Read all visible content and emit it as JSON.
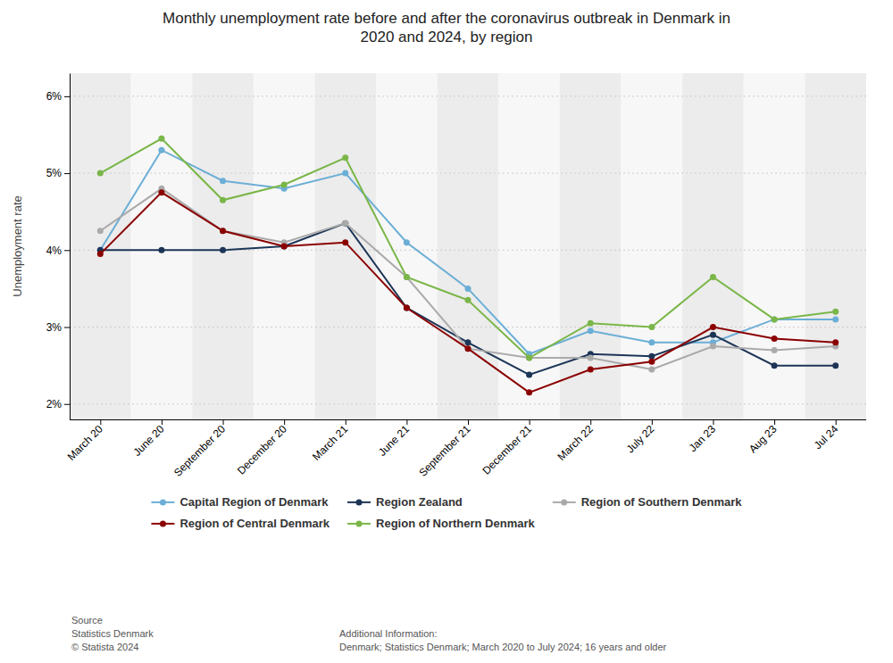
{
  "chart_data": {
    "type": "line",
    "title": "Monthly unemployment rate before and after the coronavirus outbreak in Denmark in\n2020 and 2024, by region",
    "y_label": "Unemployment rate",
    "categories": [
      "March 20",
      "June 20",
      "September 20",
      "December 20",
      "March 21",
      "June 21",
      "September 21",
      "December 21",
      "March 22",
      "July 22",
      "Jan 23",
      "Aug 23",
      "Jul 24"
    ],
    "series": [
      {
        "name": "Capital Region of Denmark",
        "color": "#6BAED6",
        "values": [
          4.0,
          5.3,
          4.9,
          4.8,
          5.0,
          4.1,
          3.5,
          2.65,
          2.95,
          2.8,
          2.8,
          3.1,
          3.1
        ]
      },
      {
        "name": "Region Zealand",
        "color": "#1C3557",
        "values": [
          4.0,
          4.0,
          4.0,
          4.05,
          4.35,
          3.25,
          2.8,
          2.38,
          2.65,
          2.62,
          2.9,
          2.5,
          2.5
        ]
      },
      {
        "name": "Region of Southern Denmark",
        "color": "#AAAAAA",
        "values": [
          4.25,
          4.8,
          4.25,
          4.1,
          4.35,
          3.65,
          2.72,
          2.6,
          2.6,
          2.45,
          2.75,
          2.7,
          2.75
        ]
      },
      {
        "name": "Region of Central Denmark",
        "color": "#8B0000",
        "values": [
          3.95,
          4.75,
          4.25,
          4.05,
          4.1,
          3.25,
          2.72,
          2.15,
          2.45,
          2.55,
          3.0,
          2.85,
          2.8
        ]
      },
      {
        "name": "Region of Northern Denmark",
        "color": "#7AB648",
        "values": [
          5.0,
          5.45,
          4.65,
          4.85,
          5.2,
          3.65,
          3.35,
          2.6,
          3.05,
          3.0,
          3.65,
          3.1,
          3.2
        ]
      }
    ],
    "ylim": [
      1.8,
      6.3
    ],
    "yticks": [
      {
        "value": 2,
        "label": "2%"
      },
      {
        "value": 3,
        "label": "3%"
      },
      {
        "value": 4,
        "label": "4%"
      },
      {
        "value": 5,
        "label": "5%"
      },
      {
        "value": 6,
        "label": "6%"
      }
    ],
    "grid": true,
    "legend": "bottom",
    "marker": "circle",
    "annotations": [
      "Source\nStatistics Denmark\n© Statista 2024",
      "Additional Information:\nDenmark; Statistics Denmark; March 2020 to July 2024; 16 years and older"
    ]
  }
}
